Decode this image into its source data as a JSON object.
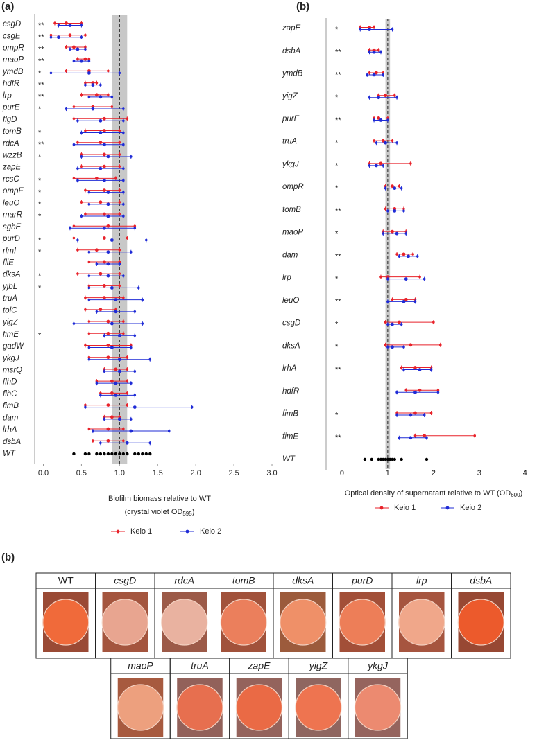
{
  "chart_data": [
    {
      "type": "interval",
      "panel": "(a)",
      "categories": [
        "csgD",
        "csgE",
        "ompR",
        "maoP",
        "ymdB",
        "hdfR",
        "lrp",
        "purE",
        "flgD",
        "tomB",
        "rdcA",
        "wzzB",
        "zapE",
        "rcsC",
        "ompF",
        "leuO",
        "marR",
        "sgbE",
        "purD",
        "rlmI",
        "fliE",
        "dksA",
        "yjbL",
        "truA",
        "tolC",
        "yigZ",
        "fimE",
        "gadW",
        "ykgJ",
        "msrQ",
        "flhD",
        "flhC",
        "fimB",
        "dam",
        "lrhA",
        "dsbA",
        "WT"
      ],
      "significance": [
        "**",
        "**",
        "**",
        "**",
        "*",
        "**",
        "**",
        "*",
        null,
        "*",
        "**",
        "*",
        null,
        "*",
        "*",
        "*",
        "*",
        null,
        "*",
        "*",
        null,
        "*",
        "*",
        null,
        null,
        null,
        "*",
        null,
        null,
        null,
        null,
        null,
        null,
        null,
        null,
        null,
        null
      ],
      "series": [
        {
          "name": "Keio 1",
          "color": "#e8222a",
          "values": [
            0.3,
            0.35,
            0.4,
            0.55,
            0.6,
            0.65,
            0.7,
            0.65,
            0.8,
            0.8,
            0.75,
            0.8,
            0.8,
            0.7,
            0.8,
            0.75,
            0.8,
            0.85,
            0.8,
            0.7,
            0.8,
            0.75,
            0.8,
            0.8,
            0.75,
            0.85,
            0.85,
            0.85,
            0.85,
            0.95,
            0.9,
            0.9,
            0.85,
            0.9,
            0.85,
            0.85,
            null
          ],
          "lower": [
            0.15,
            0.1,
            0.3,
            0.45,
            0.3,
            0.55,
            0.5,
            0.4,
            0.4,
            0.55,
            0.45,
            0.5,
            0.5,
            0.4,
            0.55,
            0.5,
            0.55,
            0.4,
            0.4,
            0.45,
            0.6,
            0.45,
            0.6,
            0.55,
            0.55,
            0.6,
            0.6,
            0.55,
            0.6,
            0.8,
            0.7,
            0.75,
            0.55,
            0.8,
            0.6,
            0.65,
            null
          ],
          "upper": [
            0.5,
            0.55,
            0.55,
            0.6,
            0.85,
            0.7,
            0.85,
            0.9,
            1.1,
            1.0,
            1.0,
            1.0,
            1.0,
            0.95,
            1.0,
            1.0,
            1.0,
            1.2,
            1.1,
            1.0,
            1.0,
            1.0,
            1.0,
            1.05,
            0.95,
            1.05,
            1.05,
            1.15,
            1.1,
            1.1,
            1.1,
            1.1,
            1.1,
            1.0,
            1.05,
            1.05,
            null
          ]
        },
        {
          "name": "Keio 2",
          "color": "#1f2bd6",
          "values": [
            0.35,
            0.2,
            0.45,
            0.5,
            0.6,
            0.65,
            0.75,
            0.65,
            0.75,
            0.75,
            0.8,
            0.85,
            0.75,
            0.8,
            0.85,
            0.85,
            0.85,
            0.8,
            0.9,
            0.85,
            0.85,
            0.85,
            0.9,
            0.95,
            0.95,
            0.9,
            1.0,
            0.9,
            1.0,
            1.0,
            0.95,
            0.95,
            1.2,
            1.0,
            1.15,
            1.1,
            null
          ],
          "lower": [
            0.2,
            0.1,
            0.35,
            0.4,
            0.1,
            0.55,
            0.6,
            0.3,
            0.45,
            0.5,
            0.4,
            0.5,
            0.45,
            0.45,
            0.6,
            0.6,
            0.5,
            0.35,
            0.45,
            0.6,
            0.7,
            0.6,
            0.6,
            0.6,
            0.7,
            0.4,
            0.8,
            0.6,
            0.6,
            0.8,
            0.7,
            0.75,
            0.55,
            0.8,
            0.65,
            0.75,
            null
          ],
          "upper": [
            0.5,
            0.5,
            0.55,
            0.6,
            1.0,
            0.75,
            0.9,
            1.05,
            1.05,
            1.05,
            1.05,
            1.15,
            1.05,
            1.05,
            1.05,
            1.05,
            1.05,
            1.2,
            1.35,
            1.15,
            1.0,
            1.05,
            1.25,
            1.3,
            1.2,
            1.3,
            1.2,
            1.15,
            1.4,
            1.2,
            1.15,
            1.2,
            1.95,
            1.15,
            1.65,
            1.4,
            null
          ]
        }
      ],
      "wt_points": [
        0.4,
        0.55,
        0.6,
        0.7,
        0.75,
        0.8,
        0.85,
        0.9,
        0.95,
        1.0,
        1.05,
        1.1,
        1.2,
        1.25,
        1.3,
        1.35,
        1.4
      ],
      "wt_color": "#000000",
      "reference": 1,
      "reference_band": [
        0.9,
        1.1
      ],
      "xlim": [
        -0.05,
        3.1
      ],
      "xticks": [
        {
          "value": 0,
          "label": "0.0"
        },
        {
          "value": 0.5,
          "label": "0.5"
        },
        {
          "value": 1,
          "label": "1.0"
        },
        {
          "value": 1.5,
          "label": "1.5"
        },
        {
          "value": 2,
          "label": "2.0"
        },
        {
          "value": 2.5,
          "label": "2.5"
        },
        {
          "value": 3,
          "label": "3.0"
        }
      ],
      "x_label": "Biofilm biomass relative to WT",
      "x_label_2": [
        "(crystal violet OD",
        "595",
        ")"
      ]
    },
    {
      "type": "interval",
      "panel": "(b)",
      "categories": [
        "zapE",
        "dsbA",
        "ymdB",
        "yigZ",
        "purE",
        "truA",
        "ykgJ",
        "ompR",
        "tomB",
        "maoP",
        "dam",
        "lrp",
        "leuO",
        "csgD",
        "dksA",
        "lrhA",
        "hdfR",
        "fimB",
        "fimE",
        "WT"
      ],
      "significance": [
        "*",
        "**",
        "**",
        "*",
        "**",
        "*",
        "*",
        "*",
        "**",
        "*",
        "**",
        "*",
        "**",
        "*",
        "*",
        "**",
        null,
        "*",
        "**",
        null
      ],
      "series": [
        {
          "name": "Keio 1",
          "color": "#e8222a",
          "values": [
            0.6,
            0.7,
            0.75,
            0.95,
            0.8,
            0.9,
            0.85,
            1.1,
            1.15,
            1.1,
            1.35,
            1.0,
            1.4,
            1.25,
            1.5,
            1.6,
            1.7,
            1.6,
            1.8,
            null
          ],
          "lower": [
            0.4,
            0.6,
            0.6,
            0.8,
            0.7,
            0.7,
            0.6,
            0.95,
            0.95,
            0.9,
            1.2,
            0.85,
            1.1,
            0.95,
            0.95,
            1.3,
            1.4,
            1.2,
            1.6,
            null
          ],
          "upper": [
            0.7,
            0.8,
            0.9,
            1.15,
            1.0,
            1.1,
            1.5,
            1.25,
            1.35,
            1.4,
            1.55,
            1.7,
            1.6,
            2.0,
            2.15,
            1.95,
            2.1,
            1.95,
            2.9,
            null
          ]
        },
        {
          "name": "Keio 2",
          "color": "#1f2bd6",
          "values": [
            0.6,
            0.7,
            0.7,
            0.8,
            0.85,
            0.95,
            0.75,
            1.15,
            1.15,
            1.2,
            1.45,
            1.4,
            1.35,
            1.1,
            1.1,
            1.7,
            1.6,
            1.5,
            1.5,
            null
          ],
          "lower": [
            0.4,
            0.6,
            0.55,
            0.6,
            0.7,
            0.75,
            0.6,
            0.95,
            1.0,
            0.9,
            1.25,
            1.0,
            1.0,
            1.0,
            1.0,
            1.35,
            1.2,
            1.2,
            1.25,
            null
          ],
          "upper": [
            1.1,
            0.85,
            0.9,
            1.2,
            1.0,
            1.2,
            0.9,
            1.3,
            1.35,
            1.4,
            1.65,
            1.8,
            1.6,
            1.3,
            1.35,
            1.95,
            2.1,
            1.8,
            1.85,
            null
          ]
        }
      ],
      "wt_points": [
        0.5,
        0.65,
        0.8,
        0.85,
        0.9,
        0.95,
        1.0,
        1.05,
        1.1,
        1.15,
        1.3,
        1.85
      ],
      "wt_color": "#000000",
      "reference": 1,
      "reference_band": [
        0.95,
        1.05
      ],
      "xlim": [
        -0.15,
        4.2
      ],
      "xticks": [
        0,
        1,
        2,
        3,
        4
      ],
      "x_label": [
        "Optical density of supernatant relative to WT (OD",
        "600",
        ")"
      ]
    }
  ],
  "plates": {
    "panel": "(b)",
    "items": [
      {
        "label": "WT",
        "italic": false,
        "colony": "#f06a3a",
        "background": "#9a4a35"
      },
      {
        "label": "csgD",
        "italic": true,
        "colony": "#e8a590",
        "background": "#a4553e"
      },
      {
        "label": "rdcA",
        "italic": true,
        "colony": "#e9b2a0",
        "background": "#9c5a48"
      },
      {
        "label": "tomB",
        "italic": true,
        "colony": "#eb7f5c",
        "background": "#a1523b"
      },
      {
        "label": "dksA",
        "italic": true,
        "colony": "#ef9068",
        "background": "#9c5b3c"
      },
      {
        "label": "purD",
        "italic": true,
        "colony": "#ed7e58",
        "background": "#a24f38"
      },
      {
        "label": "lrp",
        "italic": true,
        "colony": "#f0a78a",
        "background": "#a6553f"
      },
      {
        "label": "dsbA",
        "italic": true,
        "colony": "#ec5a2c",
        "background": "#974833"
      },
      {
        "label": "maoP",
        "italic": true,
        "colony": "#eda07e",
        "background": "#a75a3f"
      },
      {
        "label": "truA",
        "italic": true,
        "colony": "#e76f4f",
        "background": "#92615a"
      },
      {
        "label": "zapE",
        "italic": true,
        "colony": "#ea6a45",
        "background": "#94635c"
      },
      {
        "label": "yigZ",
        "italic": true,
        "colony": "#ee7450",
        "background": "#8f6660"
      },
      {
        "label": "ykgJ",
        "italic": true,
        "colony": "#ec8a70",
        "background": "#95645e"
      }
    ]
  }
}
